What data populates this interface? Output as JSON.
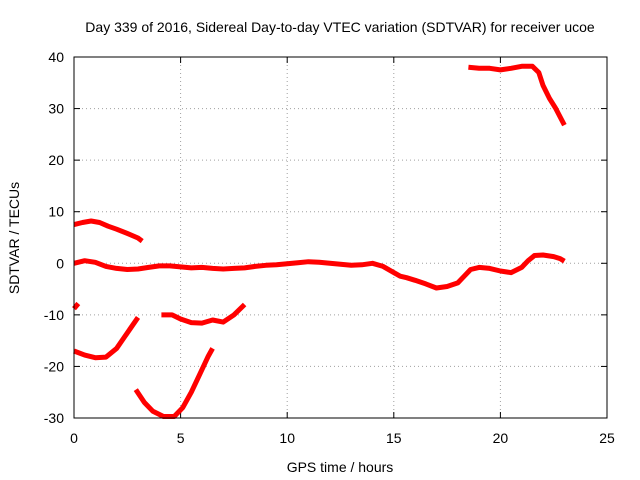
{
  "chart_data": {
    "type": "line",
    "title": "Day 339 of 2016, Sidereal Day-to-day VTEC variation (SDTVAR) for receiver ucoe",
    "xlabel": "GPS time / hours",
    "ylabel": "SDTVAR / TECUs",
    "xlim": [
      0,
      25
    ],
    "ylim": [
      -30,
      40
    ],
    "xticks": [
      0,
      5,
      10,
      15,
      20,
      25
    ],
    "yticks": [
      -30,
      -20,
      -10,
      0,
      10,
      20,
      30,
      40
    ],
    "grid": true,
    "color": "#ff0000",
    "series": [
      {
        "name": "main",
        "x": [
          0,
          0.5,
          1,
          1.5,
          2,
          2.5,
          3,
          3.5,
          4,
          4.5,
          5,
          5.5,
          6,
          6.5,
          7,
          7.5,
          8,
          8.5,
          9,
          9.5,
          10,
          10.5,
          11,
          11.5,
          12,
          12.5,
          13,
          13.5,
          14,
          14.5,
          15,
          15.3,
          15.6,
          16,
          16.5,
          17,
          17.5,
          18,
          18.3,
          18.6,
          19,
          19.5,
          20,
          20.5,
          21,
          21.3,
          21.6,
          22,
          22.5,
          22.8,
          23
        ],
        "y": [
          0,
          0.5,
          0.2,
          -0.6,
          -1,
          -1.2,
          -1.1,
          -0.8,
          -0.5,
          -0.5,
          -0.7,
          -0.9,
          -0.8,
          -1,
          -1.1,
          -1,
          -0.9,
          -0.6,
          -0.4,
          -0.3,
          -0.1,
          0.1,
          0.3,
          0.2,
          0,
          -0.2,
          -0.4,
          -0.3,
          0,
          -0.6,
          -1.8,
          -2.5,
          -2.8,
          -3.3,
          -4,
          -4.8,
          -4.5,
          -3.8,
          -2.5,
          -1.2,
          -0.8,
          -1,
          -1.5,
          -1.8,
          -0.8,
          0.5,
          1.5,
          1.6,
          1.3,
          0.9,
          0.4
        ]
      },
      {
        "name": "seg-upper-left",
        "x": [
          0,
          0.4,
          0.8,
          1.2,
          1.6,
          2,
          2.5,
          3,
          3.2
        ],
        "y": [
          7.5,
          7.9,
          8.2,
          7.9,
          7.2,
          6.6,
          5.8,
          4.9,
          4.3
        ]
      },
      {
        "name": "seg-upper-right",
        "x": [
          18.5,
          19,
          19.5,
          20,
          20.5,
          21,
          21.5,
          21.8,
          22,
          22.3,
          22.6,
          23
        ],
        "y": [
          38,
          37.8,
          37.8,
          37.5,
          37.8,
          38.2,
          38.2,
          37,
          34.5,
          32,
          30,
          26.8
        ]
      },
      {
        "name": "seg-left-minus8",
        "x": [
          0,
          0.2
        ],
        "y": [
          -8.8,
          -7.8
        ]
      },
      {
        "name": "seg-lower-left",
        "x": [
          0,
          0.5,
          1,
          1.5,
          2,
          2.5,
          3
        ],
        "y": [
          -17,
          -17.8,
          -18.3,
          -18.2,
          -16.5,
          -13.5,
          -10.5
        ]
      },
      {
        "name": "seg-mid-minus11",
        "x": [
          4.1,
          4.6,
          5,
          5.5,
          6,
          6.5,
          7,
          7.5,
          8
        ],
        "y": [
          -10,
          -10,
          -10.8,
          -11.5,
          -11.6,
          -11,
          -11.4,
          -10,
          -8
        ]
      },
      {
        "name": "seg-bowl",
        "x": [
          2.9,
          3.3,
          3.7,
          4.2,
          4.7,
          5.1,
          5.5,
          5.9,
          6.3,
          6.5
        ],
        "y": [
          -24.5,
          -27,
          -28.7,
          -29.7,
          -29.7,
          -28,
          -25,
          -21.5,
          -18,
          -16.5
        ]
      }
    ]
  }
}
